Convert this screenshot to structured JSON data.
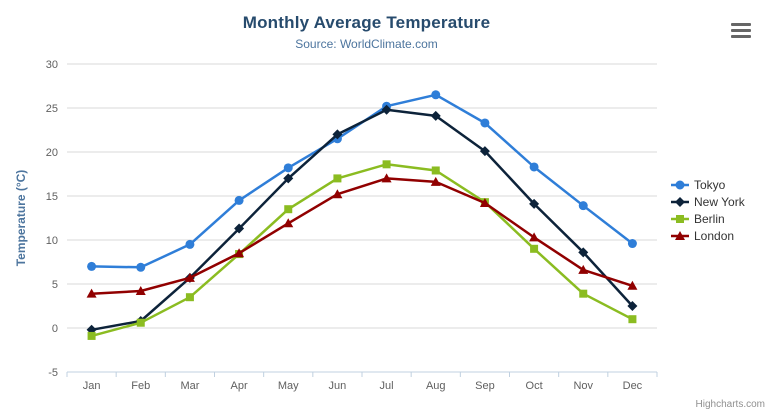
{
  "header": {
    "title": "Monthly Average Temperature",
    "subtitle": "Source: WorldClimate.com"
  },
  "export_menu": {
    "icon": "hamburger-icon",
    "tooltip": "Chart context menu"
  },
  "credits": "Highcharts.com",
  "colors": {
    "title": "#274b6d",
    "subtitle": "#4d759e",
    "axis_labels": "#606060",
    "axis_title": "#4d759e",
    "gridline": "#d8d8d8",
    "axis_line": "#c0d0e0",
    "legend_text": "#333333",
    "credits_text": "#909090"
  },
  "chart_data": {
    "type": "line",
    "title": "Monthly Average Temperature",
    "subtitle": "Source: WorldClimate.com",
    "categories": [
      "Jan",
      "Feb",
      "Mar",
      "Apr",
      "May",
      "Jun",
      "Jul",
      "Aug",
      "Sep",
      "Oct",
      "Nov",
      "Dec"
    ],
    "xlabel": "",
    "ylabel": "Temperature (°C)",
    "ylim": [
      -5,
      30
    ],
    "yticks": [
      -5,
      0,
      5,
      10,
      15,
      20,
      25,
      30
    ],
    "grid": true,
    "legend_position": "right",
    "series": [
      {
        "name": "Tokyo",
        "color": "#2f7ed8",
        "marker": "circle",
        "values": [
          7.0,
          6.9,
          9.5,
          14.5,
          18.2,
          21.5,
          25.2,
          26.5,
          23.3,
          18.3,
          13.9,
          9.6
        ]
      },
      {
        "name": "New York",
        "color": "#0d233a",
        "marker": "diamond",
        "values": [
          -0.2,
          0.8,
          5.7,
          11.3,
          17.0,
          22.0,
          24.8,
          24.1,
          20.1,
          14.1,
          8.6,
          2.5
        ]
      },
      {
        "name": "Berlin",
        "color": "#8bbc21",
        "marker": "square",
        "values": [
          -0.9,
          0.6,
          3.5,
          8.4,
          13.5,
          17.0,
          18.6,
          17.9,
          14.3,
          9.0,
          3.9,
          1.0
        ]
      },
      {
        "name": "London",
        "color": "#910000",
        "marker": "triangle",
        "values": [
          3.9,
          4.2,
          5.7,
          8.5,
          11.9,
          15.2,
          17.0,
          16.6,
          14.2,
          10.3,
          6.6,
          4.8
        ]
      }
    ]
  }
}
